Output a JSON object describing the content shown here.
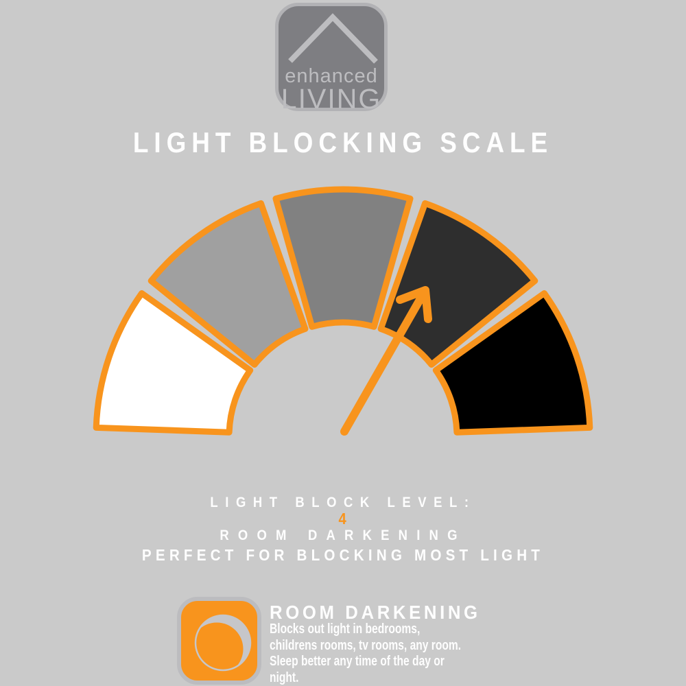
{
  "background_color": "#cacaca",
  "accent_color": "#F8941D",
  "text_color": "#fefefe",
  "logo": {
    "line1": "enhanced",
    "line2": "LIVING",
    "roof_icon": "roof-chevron-icon",
    "box_color": "#7e7e82",
    "border_color": "#b2b2b5",
    "text_color": "#bdbdc0"
  },
  "title": "LIGHT BLOCKING SCALE",
  "gauge": {
    "type": "gauge",
    "levels": 5,
    "pointer_level": 4,
    "outline_color": "#F8941D",
    "needle_color": "#F8941D",
    "segments": [
      {
        "level": 1,
        "color": "#ffffff"
      },
      {
        "level": 2,
        "color": "#a0a0a0"
      },
      {
        "level": 3,
        "color": "#818181"
      },
      {
        "level": 4,
        "color": "#2e2e2e"
      },
      {
        "level": 5,
        "color": "#000000"
      }
    ]
  },
  "level_info": {
    "label": "LIGHT BLOCK LEVEL:",
    "value": "4",
    "value_color": "#F8941D",
    "name": "ROOM DARKENING",
    "tagline": "PERFECT FOR BLOCKING MOST LIGHT"
  },
  "feature": {
    "icon": "moon-icon",
    "icon_bg": "#F8941D",
    "icon_border": "#bcbcbf",
    "moon_color": "#c6c6c9",
    "heading": "ROOM DARKENING",
    "description_lines": [
      "Blocks out light in bedrooms,",
      "childrens rooms, tv rooms, any room.",
      "Sleep better any time of the day or",
      "night."
    ]
  }
}
